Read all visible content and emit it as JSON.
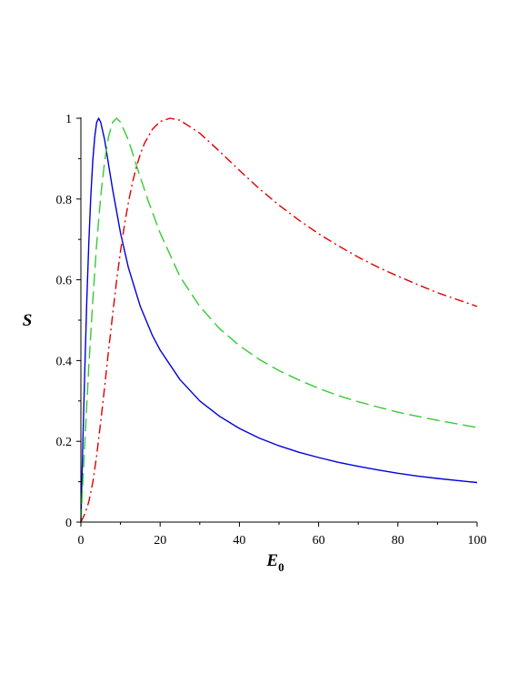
{
  "chart_data": {
    "type": "line",
    "xlabel": "E",
    "xlabel_sub": "0",
    "ylabel": "S",
    "xlim": [
      0,
      100
    ],
    "ylim": [
      0,
      1
    ],
    "grid": false,
    "x_ticks": [
      "0",
      "20",
      "40",
      "60",
      "80",
      "100"
    ],
    "y_ticks": [
      "0",
      "0.2",
      "0.4",
      "0.6",
      "0.8",
      "1"
    ],
    "series": [
      {
        "color": "#0000dd",
        "dash": "solid",
        "x": [
          0,
          0.5,
          1,
          1.5,
          2,
          2.5,
          3,
          3.5,
          4,
          4.5,
          5,
          6,
          7,
          8,
          10,
          12,
          15,
          18,
          20,
          25,
          30,
          35,
          40,
          45,
          50,
          55,
          60,
          65,
          70,
          75,
          80,
          85,
          90,
          95,
          100
        ],
        "values": [
          0,
          0.199,
          0.384,
          0.548,
          0.69,
          0.806,
          0.895,
          0.955,
          0.99,
          1.0,
          0.99,
          0.946,
          0.885,
          0.824,
          0.716,
          0.63,
          0.534,
          0.463,
          0.426,
          0.353,
          0.3,
          0.262,
          0.232,
          0.208,
          0.189,
          0.173,
          0.16,
          0.148,
          0.138,
          0.129,
          0.121,
          0.114,
          0.108,
          0.103,
          0.098
        ]
      },
      {
        "color": "#33cc33",
        "dash": "long-dash",
        "x": [
          0,
          1,
          2,
          3,
          4,
          5,
          6,
          7,
          8,
          9,
          10,
          12,
          14,
          17,
          20,
          25,
          30,
          35,
          40,
          45,
          50,
          55,
          60,
          65,
          70,
          75,
          80,
          85,
          90,
          95,
          100
        ],
        "values": [
          0,
          0.199,
          0.385,
          0.548,
          0.69,
          0.806,
          0.895,
          0.955,
          0.99,
          1.0,
          0.99,
          0.946,
          0.884,
          0.795,
          0.716,
          0.608,
          0.534,
          0.479,
          0.437,
          0.403,
          0.375,
          0.352,
          0.331,
          0.313,
          0.298,
          0.285,
          0.272,
          0.262,
          0.252,
          0.243,
          0.234
        ]
      },
      {
        "color": "#dd0000",
        "dash": "dash-dot",
        "x": [
          0,
          1,
          2,
          3,
          4,
          5,
          6,
          7,
          8,
          9,
          10,
          11,
          12,
          13,
          14,
          15,
          16,
          18,
          20,
          22.5,
          25,
          30,
          35,
          40,
          45,
          50,
          55,
          60,
          65,
          70,
          75,
          80,
          85,
          90,
          95,
          100
        ],
        "values": [
          0,
          0.02,
          0.05,
          0.098,
          0.165,
          0.248,
          0.336,
          0.426,
          0.513,
          0.596,
          0.671,
          0.736,
          0.792,
          0.84,
          0.879,
          0.911,
          0.937,
          0.972,
          0.992,
          1.0,
          0.995,
          0.963,
          0.918,
          0.871,
          0.826,
          0.785,
          0.748,
          0.714,
          0.684,
          0.656,
          0.631,
          0.609,
          0.588,
          0.568,
          0.551,
          0.534
        ]
      }
    ]
  }
}
